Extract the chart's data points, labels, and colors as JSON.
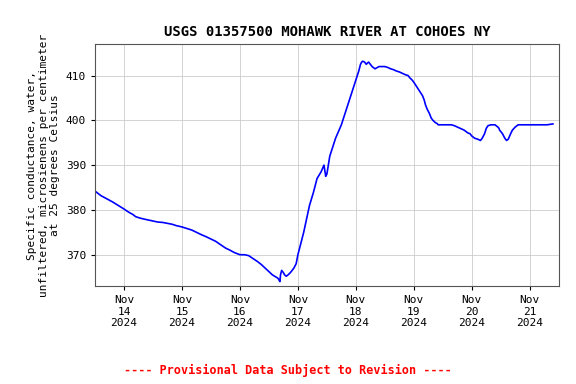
{
  "title": "USGS 01357500 MOHAWK RIVER AT COHOES NY",
  "ylabel_lines": [
    "Specific conductance, water,",
    "unfiltered, microsienens per centimeter",
    "at 25 degrees Celsius"
  ],
  "line_color": "#0000ff",
  "line_width": 1.2,
  "grid_color": "#cccccc",
  "background_color": "#ffffff",
  "plot_background": "#ffffff",
  "ylim": [
    363,
    417
  ],
  "yticks": [
    370,
    380,
    390,
    400,
    410
  ],
  "footer_text": "---- Provisional Data Subject to Revision ----",
  "footer_color": "#ff0000",
  "title_fontsize": 10,
  "ylabel_fontsize": 8,
  "tick_fontsize": 8,
  "xlim_start_day": 13.5,
  "xlim_end_day": 21.5,
  "xtick_days": [
    14,
    15,
    16,
    17,
    18,
    19,
    20,
    21
  ],
  "data_points": [
    [
      13.52,
      384.0
    ],
    [
      13.6,
      383.2
    ],
    [
      13.7,
      382.5
    ],
    [
      13.8,
      381.8
    ],
    [
      13.9,
      381.0
    ],
    [
      14.0,
      380.2
    ],
    [
      14.08,
      379.5
    ],
    [
      14.15,
      379.0
    ],
    [
      14.2,
      378.5
    ],
    [
      14.27,
      378.2
    ],
    [
      14.33,
      378.0
    ],
    [
      14.4,
      377.8
    ],
    [
      14.5,
      377.5
    ],
    [
      14.58,
      377.3
    ],
    [
      14.67,
      377.2
    ],
    [
      14.75,
      377.0
    ],
    [
      14.83,
      376.8
    ],
    [
      14.9,
      376.5
    ],
    [
      15.0,
      376.2
    ],
    [
      15.1,
      375.8
    ],
    [
      15.17,
      375.5
    ],
    [
      15.25,
      375.0
    ],
    [
      15.33,
      374.5
    ],
    [
      15.42,
      374.0
    ],
    [
      15.5,
      373.5
    ],
    [
      15.58,
      373.0
    ],
    [
      15.67,
      372.2
    ],
    [
      15.75,
      371.5
    ],
    [
      15.83,
      371.0
    ],
    [
      15.9,
      370.5
    ],
    [
      16.0,
      370.0
    ],
    [
      16.08,
      370.0
    ],
    [
      16.15,
      369.8
    ],
    [
      16.22,
      369.2
    ],
    [
      16.3,
      368.5
    ],
    [
      16.37,
      367.8
    ],
    [
      16.42,
      367.2
    ],
    [
      16.48,
      366.5
    ],
    [
      16.52,
      366.0
    ],
    [
      16.56,
      365.5
    ],
    [
      16.6,
      365.2
    ],
    [
      16.63,
      365.0
    ],
    [
      16.65,
      364.8
    ],
    [
      16.67,
      364.5
    ],
    [
      16.68,
      364.2
    ],
    [
      16.69,
      364.0
    ],
    [
      16.7,
      365.5
    ],
    [
      16.72,
      366.5
    ],
    [
      16.75,
      366.0
    ],
    [
      16.77,
      365.5
    ],
    [
      16.8,
      365.2
    ],
    [
      16.83,
      365.5
    ],
    [
      16.87,
      366.0
    ],
    [
      16.9,
      366.5
    ],
    [
      16.93,
      367.0
    ],
    [
      16.95,
      367.5
    ],
    [
      16.97,
      368.0
    ],
    [
      17.0,
      370.0
    ],
    [
      17.05,
      372.5
    ],
    [
      17.1,
      375.0
    ],
    [
      17.15,
      378.0
    ],
    [
      17.2,
      381.0
    ],
    [
      17.27,
      384.0
    ],
    [
      17.33,
      387.0
    ],
    [
      17.4,
      388.5
    ],
    [
      17.45,
      390.0
    ],
    [
      17.48,
      387.5
    ],
    [
      17.5,
      388.0
    ],
    [
      17.55,
      392.0
    ],
    [
      17.6,
      394.0
    ],
    [
      17.65,
      396.0
    ],
    [
      17.7,
      397.5
    ],
    [
      17.75,
      399.0
    ],
    [
      17.8,
      401.0
    ],
    [
      17.85,
      403.0
    ],
    [
      17.9,
      405.0
    ],
    [
      17.95,
      407.0
    ],
    [
      18.0,
      409.0
    ],
    [
      18.05,
      411.0
    ],
    [
      18.08,
      412.5
    ],
    [
      18.1,
      413.0
    ],
    [
      18.12,
      413.2
    ],
    [
      18.15,
      413.0
    ],
    [
      18.18,
      412.5
    ],
    [
      18.2,
      412.8
    ],
    [
      18.22,
      413.0
    ],
    [
      18.25,
      412.5
    ],
    [
      18.28,
      412.0
    ],
    [
      18.33,
      411.5
    ],
    [
      18.37,
      411.8
    ],
    [
      18.4,
      412.0
    ],
    [
      18.45,
      412.0
    ],
    [
      18.5,
      412.0
    ],
    [
      18.55,
      411.8
    ],
    [
      18.6,
      411.5
    ],
    [
      18.65,
      411.3
    ],
    [
      18.7,
      411.0
    ],
    [
      18.75,
      410.8
    ],
    [
      18.8,
      410.5
    ],
    [
      18.85,
      410.2
    ],
    [
      18.9,
      410.0
    ],
    [
      18.93,
      409.5
    ],
    [
      18.97,
      409.0
    ],
    [
      19.0,
      408.5
    ],
    [
      19.05,
      407.5
    ],
    [
      19.1,
      406.5
    ],
    [
      19.15,
      405.5
    ],
    [
      19.18,
      404.5
    ],
    [
      19.2,
      403.5
    ],
    [
      19.23,
      402.5
    ],
    [
      19.27,
      401.5
    ],
    [
      19.3,
      400.5
    ],
    [
      19.33,
      400.0
    ],
    [
      19.37,
      399.5
    ],
    [
      19.4,
      399.3
    ],
    [
      19.42,
      399.0
    ],
    [
      19.45,
      399.0
    ],
    [
      19.5,
      399.0
    ],
    [
      19.55,
      399.0
    ],
    [
      19.6,
      399.0
    ],
    [
      19.65,
      399.0
    ],
    [
      19.7,
      398.8
    ],
    [
      19.75,
      398.5
    ],
    [
      19.8,
      398.2
    ],
    [
      19.83,
      398.0
    ],
    [
      19.87,
      397.8
    ],
    [
      19.9,
      397.5
    ],
    [
      19.93,
      397.2
    ],
    [
      19.97,
      397.0
    ],
    [
      20.0,
      396.5
    ],
    [
      20.05,
      396.0
    ],
    [
      20.1,
      395.8
    ],
    [
      20.15,
      395.5
    ],
    [
      20.18,
      396.0
    ],
    [
      20.22,
      397.0
    ],
    [
      20.25,
      398.2
    ],
    [
      20.28,
      398.8
    ],
    [
      20.33,
      399.0
    ],
    [
      20.37,
      399.0
    ],
    [
      20.4,
      399.0
    ],
    [
      20.42,
      398.8
    ],
    [
      20.45,
      398.5
    ],
    [
      20.47,
      398.2
    ],
    [
      20.48,
      397.8
    ],
    [
      20.5,
      397.5
    ],
    [
      20.53,
      397.0
    ],
    [
      20.55,
      396.5
    ],
    [
      20.57,
      396.0
    ],
    [
      20.6,
      395.5
    ],
    [
      20.63,
      395.8
    ],
    [
      20.67,
      397.0
    ],
    [
      20.7,
      397.8
    ],
    [
      20.75,
      398.5
    ],
    [
      20.8,
      399.0
    ],
    [
      20.85,
      399.0
    ],
    [
      20.9,
      399.0
    ],
    [
      21.0,
      399.0
    ],
    [
      21.1,
      399.0
    ],
    [
      21.2,
      399.0
    ],
    [
      21.3,
      399.0
    ],
    [
      21.4,
      399.2
    ]
  ]
}
